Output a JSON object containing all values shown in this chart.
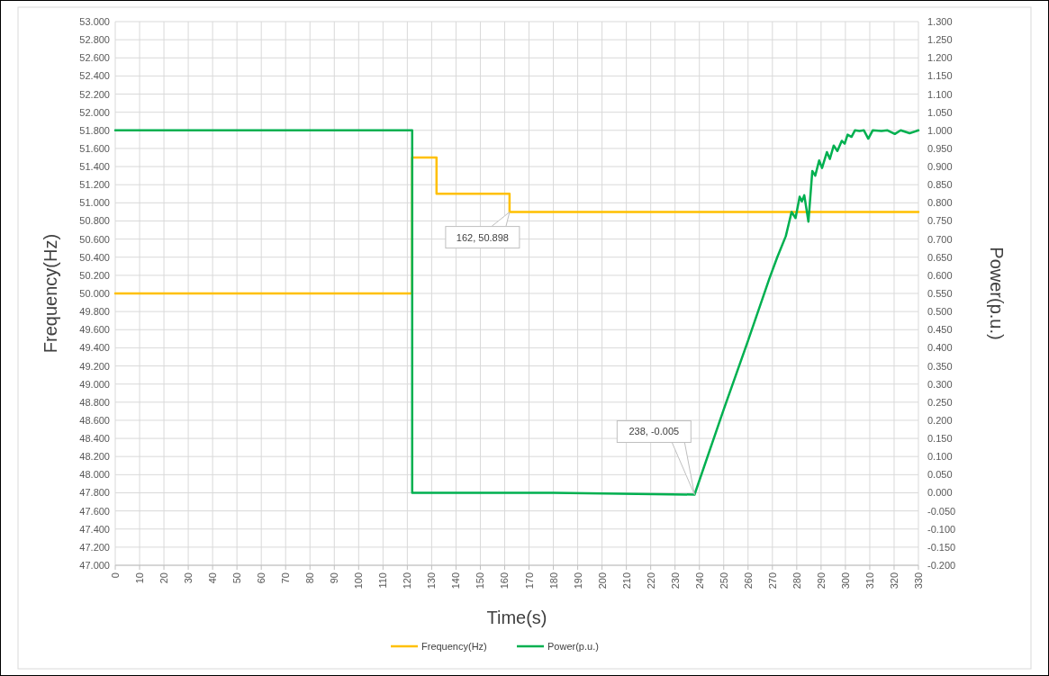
{
  "chart_data": {
    "type": "line",
    "xlabel": "Time(s)",
    "ylabel": "Frequency(Hz)",
    "y2label": "Power(p.u.)",
    "xlim": [
      0,
      330
    ],
    "xticks": [
      0,
      10,
      20,
      30,
      40,
      50,
      60,
      70,
      80,
      90,
      100,
      110,
      120,
      130,
      140,
      150,
      160,
      170,
      180,
      190,
      200,
      210,
      220,
      230,
      240,
      250,
      260,
      270,
      280,
      290,
      300,
      310,
      320,
      330
    ],
    "ylim": [
      47,
      53
    ],
    "yticks": [
      {
        "value": 47,
        "label": "47.000"
      },
      {
        "value": 47.2,
        "label": "47.200"
      },
      {
        "value": 47.4,
        "label": "47.400"
      },
      {
        "value": 47.6,
        "label": "47.600"
      },
      {
        "value": 47.8,
        "label": "47.800"
      },
      {
        "value": 48,
        "label": "48.000"
      },
      {
        "value": 48.2,
        "label": "48.200"
      },
      {
        "value": 48.4,
        "label": "48.400"
      },
      {
        "value": 48.6,
        "label": "48.600"
      },
      {
        "value": 48.8,
        "label": "48.800"
      },
      {
        "value": 49,
        "label": "49.000"
      },
      {
        "value": 49.2,
        "label": "49.200"
      },
      {
        "value": 49.4,
        "label": "49.400"
      },
      {
        "value": 49.6,
        "label": "49.600"
      },
      {
        "value": 49.8,
        "label": "49.800"
      },
      {
        "value": 50,
        "label": "50.000"
      },
      {
        "value": 50.2,
        "label": "50.200"
      },
      {
        "value": 50.4,
        "label": "50.400"
      },
      {
        "value": 50.6,
        "label": "50.600"
      },
      {
        "value": 50.8,
        "label": "50.800"
      },
      {
        "value": 51,
        "label": "51.000"
      },
      {
        "value": 51.2,
        "label": "51.200"
      },
      {
        "value": 51.4,
        "label": "51.400"
      },
      {
        "value": 51.6,
        "label": "51.600"
      },
      {
        "value": 51.8,
        "label": "51.800"
      },
      {
        "value": 52,
        "label": "52.000"
      },
      {
        "value": 52.2,
        "label": "52.200"
      },
      {
        "value": 52.4,
        "label": "52.400"
      },
      {
        "value": 52.6,
        "label": "52.600"
      },
      {
        "value": 52.8,
        "label": "52.800"
      },
      {
        "value": 53,
        "label": "53.000"
      }
    ],
    "y2lim": [
      -0.2,
      1.3
    ],
    "y2ticks": [
      {
        "value": -0.2,
        "label": "-0.200"
      },
      {
        "value": -0.15,
        "label": "-0.150"
      },
      {
        "value": -0.1,
        "label": "-0.100"
      },
      {
        "value": -0.05,
        "label": "-0.050"
      },
      {
        "value": 0,
        "label": "0.000"
      },
      {
        "value": 0.05,
        "label": "0.050"
      },
      {
        "value": 0.1,
        "label": "0.100"
      },
      {
        "value": 0.15,
        "label": "0.150"
      },
      {
        "value": 0.2,
        "label": "0.200"
      },
      {
        "value": 0.25,
        "label": "0.250"
      },
      {
        "value": 0.3,
        "label": "0.300"
      },
      {
        "value": 0.35,
        "label": "0.350"
      },
      {
        "value": 0.4,
        "label": "0.400"
      },
      {
        "value": 0.45,
        "label": "0.450"
      },
      {
        "value": 0.5,
        "label": "0.500"
      },
      {
        "value": 0.55,
        "label": "0.550"
      },
      {
        "value": 0.6,
        "label": "0.600"
      },
      {
        "value": 0.65,
        "label": "0.650"
      },
      {
        "value": 0.7,
        "label": "0.700"
      },
      {
        "value": 0.75,
        "label": "0.750"
      },
      {
        "value": 0.8,
        "label": "0.800"
      },
      {
        "value": 0.85,
        "label": "0.850"
      },
      {
        "value": 0.9,
        "label": "0.900"
      },
      {
        "value": 0.95,
        "label": "0.950"
      },
      {
        "value": 1,
        "label": "1.000"
      },
      {
        "value": 1.05,
        "label": "1.050"
      },
      {
        "value": 1.1,
        "label": "1.100"
      },
      {
        "value": 1.15,
        "label": "1.150"
      },
      {
        "value": 1.2,
        "label": "1.200"
      },
      {
        "value": 1.25,
        "label": "1.250"
      },
      {
        "value": 1.3,
        "label": "1.300"
      }
    ],
    "grid": true,
    "legend": "bottom",
    "line_style": "solid",
    "marker": "none",
    "series": [
      {
        "name": "Frequency(Hz)",
        "color": "#ffc000",
        "x": [
          0,
          122,
          122,
          132,
          132,
          162,
          162,
          200,
          250,
          300,
          330
        ],
        "values": [
          50,
          50,
          51.5,
          51.5,
          51.1,
          51.1,
          50.898,
          50.9,
          50.9,
          50.9,
          50.9
        ]
      },
      {
        "name": "Power(p.u.)",
        "color": "#00b050",
        "axis": "y2",
        "x": [
          0,
          122,
          122,
          180,
          238,
          250,
          260,
          268.8,
          272,
          275.5,
          277.9,
          279.5,
          281.2,
          282.1,
          283.1,
          284.8,
          286.4,
          287.6,
          289.2,
          290.4,
          292.4,
          293.6,
          295.2,
          296.7,
          298.5,
          299.7,
          300.9,
          302.5,
          303.9,
          305.8,
          307.6,
          309.4,
          311.2,
          314.8,
          317.3,
          320.3,
          322.7,
          326.4,
          330
        ],
        "values": [
          1,
          1,
          0,
          0,
          -0.005,
          0.23,
          0.42,
          0.592,
          0.65,
          0.708,
          0.775,
          0.758,
          0.817,
          0.804,
          0.821,
          0.748,
          0.888,
          0.875,
          0.917,
          0.896,
          0.94,
          0.921,
          0.958,
          0.943,
          0.971,
          0.963,
          0.988,
          0.982,
          1,
          0.998,
          1,
          0.977,
          1,
          0.998,
          1,
          0.99,
          1,
          0.992,
          1
        ]
      }
    ],
    "annotations": [
      {
        "text": "162, 50.898",
        "x": 162,
        "y": 50.898
      },
      "238, -0.005"
    ]
  }
}
